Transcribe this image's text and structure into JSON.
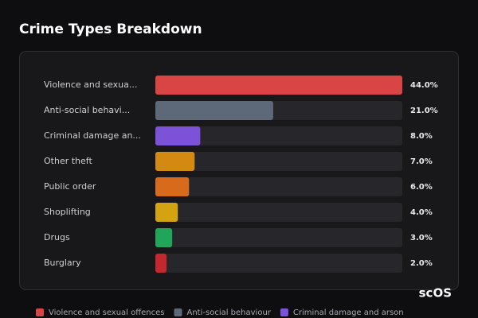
{
  "chart_data": {
    "type": "bar",
    "orientation": "horizontal",
    "title": "Crime Types Breakdown",
    "categories": [
      "Violence and sexua...",
      "Anti-social behavi...",
      "Criminal damage an...",
      "Other theft",
      "Public order",
      "Shoplifting",
      "Drugs",
      "Burglary"
    ],
    "values": [
      44.0,
      21.0,
      8.0,
      7.0,
      6.0,
      4.0,
      3.0,
      2.0
    ],
    "value_labels": [
      "44.0%",
      "21.0%",
      "8.0%",
      "7.0%",
      "6.0%",
      "4.0%",
      "3.0%",
      "2.0%"
    ],
    "colors": [
      "#d94444",
      "#5d6878",
      "#7c52d8",
      "#d48a12",
      "#d86a1c",
      "#d4a312",
      "#21a558",
      "#c4282e"
    ],
    "xlim": [
      0,
      44
    ],
    "legend": [
      {
        "name": "Violence and sexual offences",
        "color": "#d94444"
      },
      {
        "name": "Anti-social behaviour",
        "color": "#5d6878"
      },
      {
        "name": "Criminal damage and arson",
        "color": "#7c52d8"
      }
    ],
    "watermark": "scOS"
  }
}
